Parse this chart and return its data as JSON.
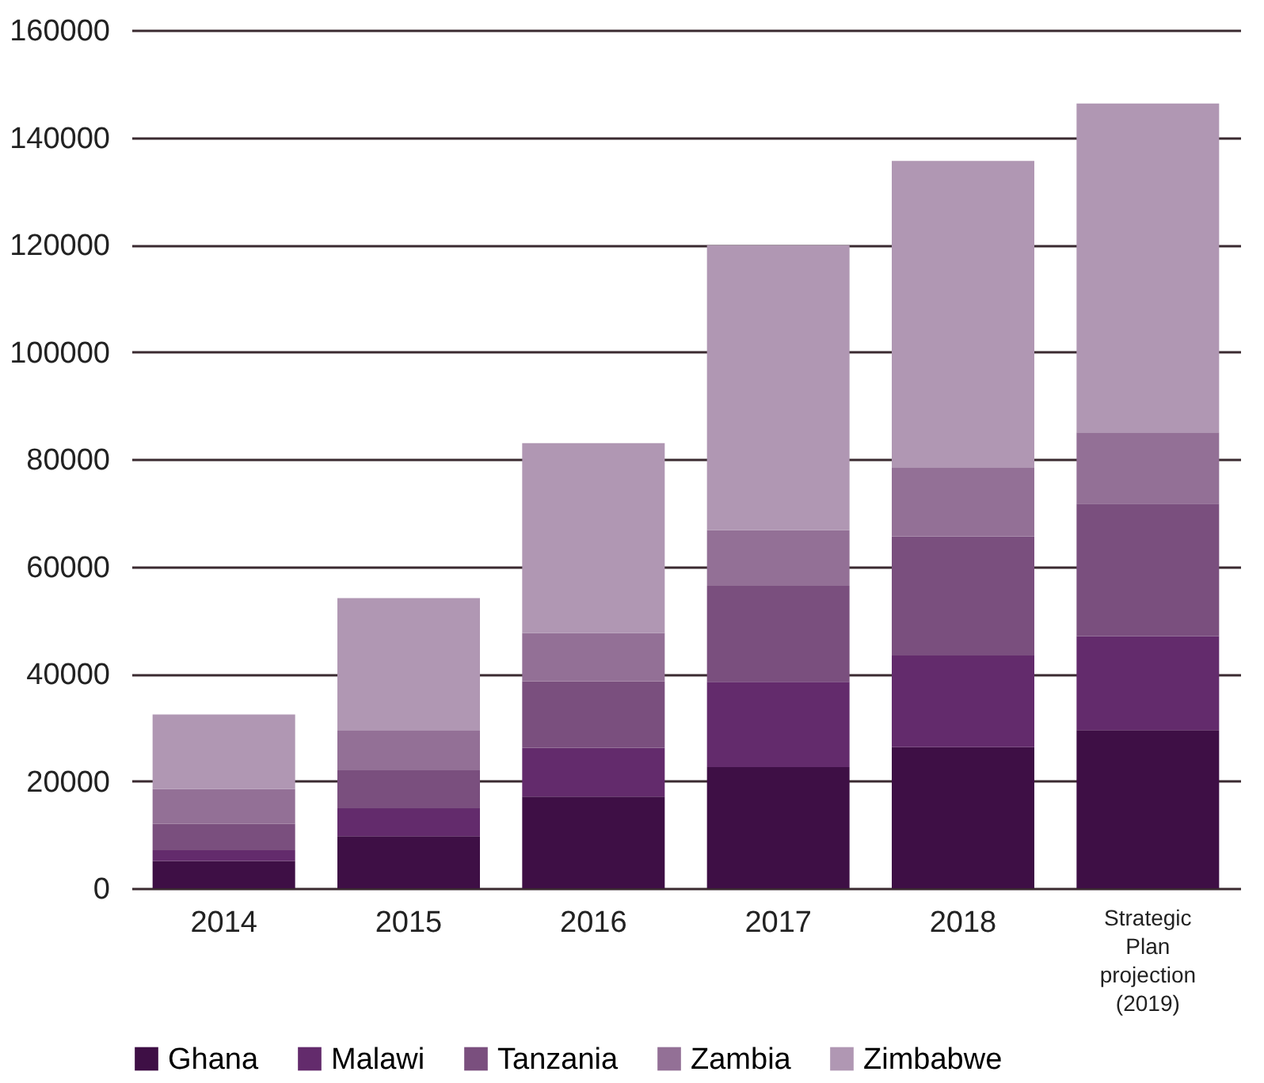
{
  "chart_data": {
    "type": "bar",
    "stacked": true,
    "categories": [
      "2014",
      "2015",
      "2016",
      "2017",
      "2018",
      "Strategic Plan projection (2019)"
    ],
    "series": [
      {
        "name": "Ghana",
        "color": "#3e0f45",
        "values": [
          5100,
          9700,
          17100,
          22600,
          26300,
          29500
        ]
      },
      {
        "name": "Malawi",
        "color": "#632b6c",
        "values": [
          2000,
          5200,
          9100,
          15900,
          17100,
          17500
        ]
      },
      {
        "name": "Tanzania",
        "color": "#7a4f7e",
        "values": [
          4900,
          7100,
          12400,
          17900,
          22200,
          24700
        ]
      },
      {
        "name": "Zambia",
        "color": "#937096",
        "values": [
          6500,
          7500,
          9000,
          10400,
          12900,
          13300
        ]
      },
      {
        "name": "Zimbabwe",
        "color": "#b097b3",
        "values": [
          13900,
          24600,
          35400,
          53100,
          57100,
          61300
        ]
      }
    ],
    "ylim": [
      0,
      160000
    ],
    "yticks": [
      0,
      20000,
      40000,
      60000,
      80000,
      100000,
      120000,
      140000,
      160000
    ],
    "grid": "y",
    "legend": "bottom"
  }
}
